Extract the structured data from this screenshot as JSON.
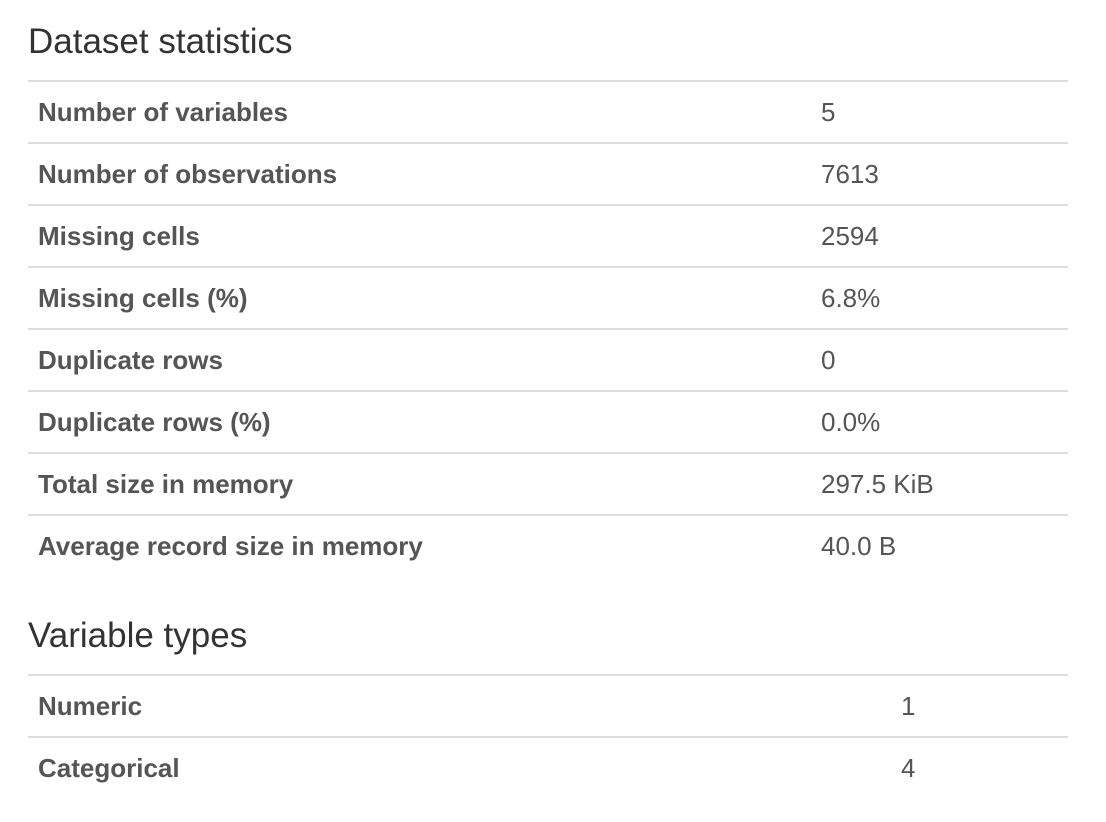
{
  "dataset_statistics": {
    "title": "Dataset statistics",
    "rows": [
      {
        "label": "Number of variables",
        "value": "5"
      },
      {
        "label": "Number of observations",
        "value": "7613"
      },
      {
        "label": "Missing cells",
        "value": "2594"
      },
      {
        "label": "Missing cells (%)",
        "value": "6.8%"
      },
      {
        "label": "Duplicate rows",
        "value": "0"
      },
      {
        "label": "Duplicate rows (%)",
        "value": "0.0%"
      },
      {
        "label": "Total size in memory",
        "value": "297.5 KiB"
      },
      {
        "label": "Average record size in memory",
        "value": "40.0 B"
      }
    ]
  },
  "variable_types": {
    "title": "Variable types",
    "rows": [
      {
        "label": "Numeric",
        "value": "1"
      },
      {
        "label": "Categorical",
        "value": "4"
      }
    ]
  }
}
